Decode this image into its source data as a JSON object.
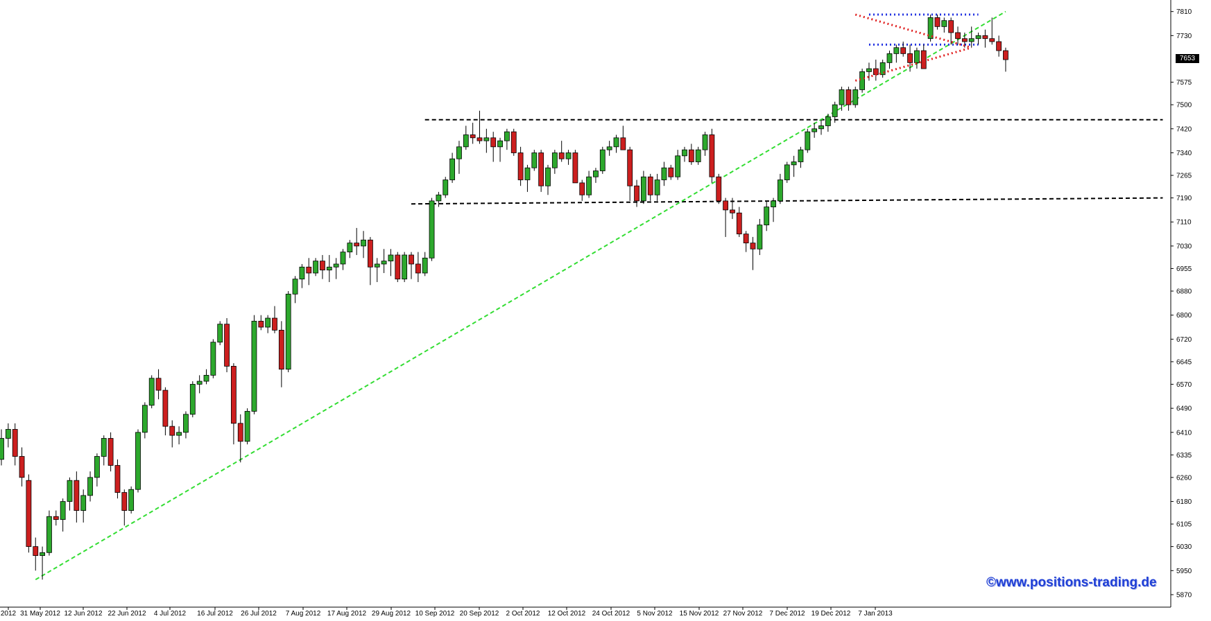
{
  "watermark": "©www.positions-trading.de",
  "last_price_label": "7653",
  "colors": {
    "up_candle": "#2da82d",
    "down_candle": "#cc1f1f",
    "trendline": "#33dd33",
    "support_resistance": "#000000",
    "range_box": "#1e2fe0",
    "triangle": "#e01f1f",
    "axis": "#000000"
  },
  "chart_data": {
    "type": "candlestick",
    "title": "",
    "xlabel": "",
    "ylabel": "",
    "ylim": [
      5840,
      7830
    ],
    "y_ticks": [
      7810,
      7730,
      7653,
      7575,
      7500,
      7420,
      7340,
      7265,
      7190,
      7110,
      7030,
      6955,
      6880,
      6800,
      6720,
      6645,
      6570,
      6490,
      6410,
      6335,
      6260,
      6180,
      6105,
      6030,
      5950,
      5870
    ],
    "x_tick_labels": [
      "2012",
      "31 May 2012",
      "12 Jun 2012",
      "22 Jun 2012",
      "4 Jul 2012",
      "16 Jul 2012",
      "26 Jul 2012",
      "7 Aug 2012",
      "17 Aug 2012",
      "29 Aug 2012",
      "10 Sep 2012",
      "20 Sep 2012",
      "2 Oct 2012",
      "12 Oct 2012",
      "24 Oct 2012",
      "5 Nov 2012",
      "15 Nov 2012",
      "27 Nov 2012",
      "7 Dec 2012",
      "19 Dec 2012",
      "7 Jan 2013"
    ],
    "last_price": 7653,
    "grid": false,
    "series": [
      {
        "name": "",
        "values": [
          [
            6320,
            6420,
            6300,
            6390
          ],
          [
            6390,
            6440,
            6360,
            6420
          ],
          [
            6420,
            6440,
            6300,
            6330
          ],
          [
            6330,
            6360,
            6230,
            6260
          ],
          [
            6250,
            6270,
            6010,
            6030
          ],
          [
            6030,
            6060,
            5950,
            6000
          ],
          [
            6000,
            6030,
            5920,
            6010
          ],
          [
            6010,
            6150,
            6000,
            6130
          ],
          [
            6130,
            6150,
            6100,
            6120
          ],
          [
            6120,
            6190,
            6080,
            6180
          ],
          [
            6180,
            6260,
            6150,
            6250
          ],
          [
            6250,
            6280,
            6110,
            6150
          ],
          [
            6150,
            6220,
            6110,
            6200
          ],
          [
            6200,
            6280,
            6180,
            6260
          ],
          [
            6260,
            6340,
            6230,
            6330
          ],
          [
            6330,
            6400,
            6300,
            6390
          ],
          [
            6390,
            6410,
            6280,
            6300
          ],
          [
            6300,
            6320,
            6190,
            6210
          ],
          [
            6210,
            6220,
            6100,
            6150
          ],
          [
            6150,
            6230,
            6140,
            6220
          ],
          [
            6220,
            6420,
            6210,
            6410
          ],
          [
            6410,
            6510,
            6390,
            6500
          ],
          [
            6500,
            6600,
            6490,
            6590
          ],
          [
            6590,
            6620,
            6520,
            6550
          ],
          [
            6550,
            6560,
            6400,
            6430
          ],
          [
            6430,
            6450,
            6360,
            6400
          ],
          [
            6400,
            6430,
            6370,
            6410
          ],
          [
            6410,
            6480,
            6390,
            6470
          ],
          [
            6470,
            6580,
            6460,
            6570
          ],
          [
            6570,
            6600,
            6540,
            6580
          ],
          [
            6580,
            6620,
            6570,
            6600
          ],
          [
            6600,
            6720,
            6590,
            6710
          ],
          [
            6710,
            6780,
            6700,
            6770
          ],
          [
            6770,
            6790,
            6610,
            6630
          ],
          [
            6630,
            6640,
            6370,
            6440
          ],
          [
            6440,
            6470,
            6310,
            6380
          ],
          [
            6380,
            6490,
            6370,
            6480
          ],
          [
            6480,
            6800,
            6470,
            6780
          ],
          [
            6780,
            6800,
            6750,
            6760
          ],
          [
            6760,
            6800,
            6740,
            6790
          ],
          [
            6790,
            6830,
            6740,
            6750
          ],
          [
            6750,
            6780,
            6560,
            6620
          ],
          [
            6620,
            6880,
            6610,
            6870
          ],
          [
            6870,
            6930,
            6840,
            6920
          ],
          [
            6920,
            6970,
            6890,
            6960
          ],
          [
            6960,
            6990,
            6900,
            6940
          ],
          [
            6940,
            6990,
            6930,
            6980
          ],
          [
            6980,
            7000,
            6920,
            6950
          ],
          [
            6950,
            7000,
            6910,
            6960
          ],
          [
            6960,
            6990,
            6920,
            6970
          ],
          [
            6970,
            7020,
            6950,
            7010
          ],
          [
            7010,
            7050,
            6990,
            7040
          ],
          [
            7040,
            7090,
            7000,
            7030
          ],
          [
            7030,
            7080,
            6990,
            7050
          ],
          [
            7050,
            7060,
            6900,
            6960
          ],
          [
            6960,
            6990,
            6910,
            6970
          ],
          [
            6970,
            7020,
            6940,
            6980
          ],
          [
            6980,
            7020,
            6930,
            7000
          ],
          [
            7000,
            7010,
            6910,
            6920
          ],
          [
            6920,
            7010,
            6910,
            7000
          ],
          [
            7000,
            7010,
            6920,
            6970
          ],
          [
            6970,
            7010,
            6910,
            6940
          ],
          [
            6940,
            7010,
            6930,
            6990
          ],
          [
            6990,
            7190,
            6980,
            7180
          ],
          [
            7180,
            7210,
            7160,
            7200
          ],
          [
            7200,
            7260,
            7190,
            7250
          ],
          [
            7250,
            7340,
            7240,
            7320
          ],
          [
            7320,
            7380,
            7270,
            7360
          ],
          [
            7360,
            7430,
            7350,
            7400
          ],
          [
            7400,
            7440,
            7370,
            7390
          ],
          [
            7390,
            7480,
            7370,
            7380
          ],
          [
            7380,
            7420,
            7340,
            7390
          ],
          [
            7390,
            7410,
            7310,
            7360
          ],
          [
            7360,
            7390,
            7310,
            7380
          ],
          [
            7380,
            7420,
            7350,
            7410
          ],
          [
            7410,
            7420,
            7330,
            7340
          ],
          [
            7340,
            7360,
            7230,
            7250
          ],
          [
            7250,
            7300,
            7210,
            7290
          ],
          [
            7290,
            7350,
            7280,
            7340
          ],
          [
            7340,
            7350,
            7210,
            7230
          ],
          [
            7230,
            7300,
            7200,
            7290
          ],
          [
            7290,
            7350,
            7270,
            7340
          ],
          [
            7340,
            7380,
            7310,
            7320
          ],
          [
            7320,
            7350,
            7300,
            7340
          ],
          [
            7340,
            7350,
            7250,
            7240
          ],
          [
            7240,
            7250,
            7180,
            7200
          ],
          [
            7200,
            7280,
            7190,
            7260
          ],
          [
            7260,
            7290,
            7240,
            7280
          ],
          [
            7280,
            7360,
            7270,
            7350
          ],
          [
            7350,
            7380,
            7330,
            7360
          ],
          [
            7360,
            7400,
            7340,
            7390
          ],
          [
            7390,
            7430,
            7360,
            7350
          ],
          [
            7350,
            7360,
            7180,
            7230
          ],
          [
            7230,
            7250,
            7160,
            7180
          ],
          [
            7180,
            7280,
            7170,
            7260
          ],
          [
            7260,
            7270,
            7180,
            7200
          ],
          [
            7200,
            7270,
            7180,
            7250
          ],
          [
            7250,
            7310,
            7230,
            7290
          ],
          [
            7290,
            7300,
            7250,
            7260
          ],
          [
            7260,
            7350,
            7250,
            7330
          ],
          [
            7330,
            7360,
            7310,
            7350
          ],
          [
            7350,
            7370,
            7300,
            7310
          ],
          [
            7310,
            7360,
            7300,
            7350
          ],
          [
            7350,
            7410,
            7330,
            7400
          ],
          [
            7400,
            7420,
            7240,
            7260
          ],
          [
            7260,
            7270,
            7170,
            7180
          ],
          [
            7180,
            7190,
            7060,
            7150
          ],
          [
            7150,
            7190,
            7120,
            7140
          ],
          [
            7140,
            7160,
            7060,
            7070
          ],
          [
            7070,
            7080,
            7010,
            7040
          ],
          [
            7040,
            7060,
            6950,
            7020
          ],
          [
            7020,
            7120,
            7000,
            7100
          ],
          [
            7100,
            7180,
            7080,
            7160
          ],
          [
            7160,
            7190,
            7110,
            7180
          ],
          [
            7180,
            7270,
            7170,
            7250
          ],
          [
            7250,
            7310,
            7240,
            7300
          ],
          [
            7300,
            7330,
            7260,
            7310
          ],
          [
            7310,
            7360,
            7290,
            7350
          ],
          [
            7350,
            7420,
            7340,
            7410
          ],
          [
            7410,
            7440,
            7390,
            7420
          ],
          [
            7420,
            7450,
            7400,
            7430
          ],
          [
            7430,
            7470,
            7410,
            7460
          ],
          [
            7460,
            7510,
            7440,
            7500
          ],
          [
            7500,
            7560,
            7480,
            7550
          ],
          [
            7550,
            7560,
            7480,
            7500
          ],
          [
            7500,
            7560,
            7490,
            7550
          ],
          [
            7550,
            7620,
            7540,
            7610
          ],
          [
            7610,
            7640,
            7580,
            7620
          ],
          [
            7620,
            7650,
            7580,
            7600
          ],
          [
            7600,
            7650,
            7590,
            7640
          ],
          [
            7640,
            7680,
            7620,
            7670
          ],
          [
            7670,
            7700,
            7640,
            7690
          ],
          [
            7690,
            7710,
            7660,
            7670
          ],
          [
            7670,
            7700,
            7610,
            7640
          ],
          [
            7640,
            7690,
            7620,
            7680
          ],
          [
            7680,
            7700,
            7620,
            7620
          ],
          [
            7720,
            7800,
            7710,
            7790
          ],
          [
            7790,
            7800,
            7750,
            7760
          ],
          [
            7760,
            7790,
            7740,
            7780
          ],
          [
            7780,
            7790,
            7700,
            7740
          ],
          [
            7740,
            7760,
            7700,
            7720
          ],
          [
            7720,
            7740,
            7690,
            7710
          ],
          [
            7710,
            7760,
            7690,
            7720
          ],
          [
            7720,
            7740,
            7700,
            7730
          ],
          [
            7730,
            7750,
            7690,
            7720
          ],
          [
            7720,
            7790,
            7700,
            7710
          ],
          [
            7710,
            7730,
            7660,
            7680
          ],
          [
            7680,
            7690,
            7610,
            7650
          ]
        ]
      }
    ],
    "trendline": {
      "x": [
        5,
        147
      ],
      "y": [
        5920,
        7810
      ]
    },
    "horizontal_levels": [
      {
        "x": [
          62,
          170
        ],
        "y": [
          7450,
          7450
        ]
      },
      {
        "x": [
          60,
          170
        ],
        "y": [
          7170,
          7190
        ]
      }
    ],
    "range_box": {
      "x": [
        127,
        143
      ],
      "top": 7800,
      "bottom": 7700
    },
    "triangle": {
      "x": [
        125,
        142
      ],
      "upper_start": 7800,
      "lower_start": 7580,
      "apex": 7690
    }
  }
}
